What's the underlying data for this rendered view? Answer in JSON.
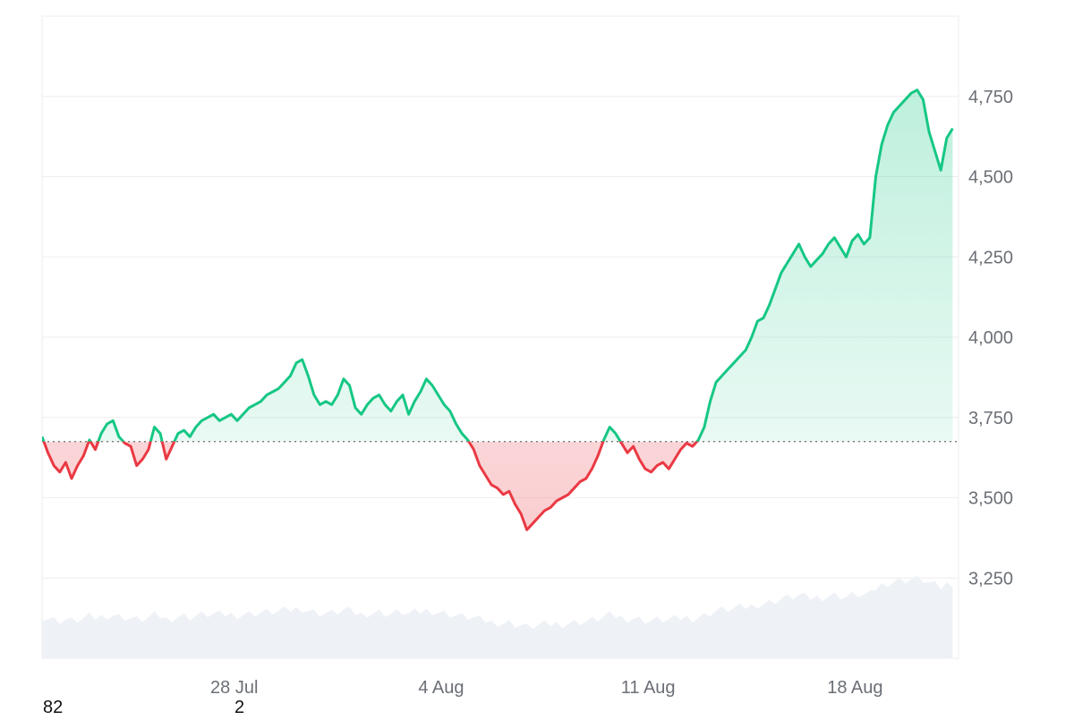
{
  "chart_data": {
    "type": "area",
    "title": "",
    "xlabel": "",
    "ylabel": "",
    "x_ticks": [
      "28 Jul",
      "4 Aug",
      "11 Aug",
      "18 Aug"
    ],
    "y_ticks": [
      "3,250",
      "3,500",
      "3,750",
      "4,000",
      "4,250",
      "4,500",
      "4,750"
    ],
    "y_tick_values": [
      3250,
      3500,
      3750,
      4000,
      4250,
      4500,
      4750
    ],
    "ylim": [
      3000,
      5000
    ],
    "baseline": 3675,
    "grid": true,
    "x_unit": "days",
    "xlim": [
      0,
      31
    ],
    "x_tick_positions": [
      6.5,
      13.5,
      20.5,
      27.5
    ],
    "series": [
      {
        "values": [
          [
            0.0,
            3690
          ],
          [
            0.2,
            3640
          ],
          [
            0.4,
            3600
          ],
          [
            0.6,
            3580
          ],
          [
            0.8,
            3610
          ],
          [
            1.0,
            3560
          ],
          [
            1.2,
            3600
          ],
          [
            1.4,
            3630
          ],
          [
            1.6,
            3680
          ],
          [
            1.8,
            3650
          ],
          [
            2.0,
            3700
          ],
          [
            2.2,
            3730
          ],
          [
            2.4,
            3740
          ],
          [
            2.6,
            3690
          ],
          [
            2.8,
            3670
          ],
          [
            3.0,
            3660
          ],
          [
            3.2,
            3600
          ],
          [
            3.4,
            3620
          ],
          [
            3.6,
            3650
          ],
          [
            3.8,
            3720
          ],
          [
            4.0,
            3700
          ],
          [
            4.2,
            3620
          ],
          [
            4.4,
            3660
          ],
          [
            4.6,
            3700
          ],
          [
            4.8,
            3710
          ],
          [
            5.0,
            3690
          ],
          [
            5.2,
            3720
          ],
          [
            5.4,
            3740
          ],
          [
            5.6,
            3750
          ],
          [
            5.8,
            3760
          ],
          [
            6.0,
            3740
          ],
          [
            6.2,
            3750
          ],
          [
            6.4,
            3760
          ],
          [
            6.6,
            3740
          ],
          [
            6.8,
            3760
          ],
          [
            7.0,
            3780
          ],
          [
            7.2,
            3790
          ],
          [
            7.4,
            3800
          ],
          [
            7.6,
            3820
          ],
          [
            7.8,
            3830
          ],
          [
            8.0,
            3840
          ],
          [
            8.2,
            3860
          ],
          [
            8.4,
            3880
          ],
          [
            8.6,
            3920
          ],
          [
            8.8,
            3930
          ],
          [
            9.0,
            3880
          ],
          [
            9.2,
            3820
          ],
          [
            9.4,
            3790
          ],
          [
            9.6,
            3800
          ],
          [
            9.8,
            3790
          ],
          [
            10.0,
            3820
          ],
          [
            10.2,
            3870
          ],
          [
            10.4,
            3850
          ],
          [
            10.6,
            3780
          ],
          [
            10.8,
            3760
          ],
          [
            11.0,
            3790
          ],
          [
            11.2,
            3810
          ],
          [
            11.4,
            3820
          ],
          [
            11.6,
            3790
          ],
          [
            11.8,
            3770
          ],
          [
            12.0,
            3800
          ],
          [
            12.2,
            3820
          ],
          [
            12.4,
            3760
          ],
          [
            12.6,
            3800
          ],
          [
            12.8,
            3830
          ],
          [
            13.0,
            3870
          ],
          [
            13.2,
            3850
          ],
          [
            13.4,
            3820
          ],
          [
            13.6,
            3790
          ],
          [
            13.8,
            3770
          ],
          [
            14.0,
            3730
          ],
          [
            14.2,
            3700
          ],
          [
            14.4,
            3680
          ],
          [
            14.6,
            3650
          ],
          [
            14.8,
            3600
          ],
          [
            15.0,
            3570
          ],
          [
            15.2,
            3540
          ],
          [
            15.4,
            3530
          ],
          [
            15.6,
            3510
          ],
          [
            15.8,
            3520
          ],
          [
            16.0,
            3480
          ],
          [
            16.2,
            3450
          ],
          [
            16.4,
            3400
          ],
          [
            16.6,
            3420
          ],
          [
            16.8,
            3440
          ],
          [
            17.0,
            3460
          ],
          [
            17.2,
            3470
          ],
          [
            17.4,
            3490
          ],
          [
            17.6,
            3500
          ],
          [
            17.8,
            3510
          ],
          [
            18.0,
            3530
          ],
          [
            18.2,
            3550
          ],
          [
            18.4,
            3560
          ],
          [
            18.6,
            3590
          ],
          [
            18.8,
            3630
          ],
          [
            19.0,
            3680
          ],
          [
            19.2,
            3720
          ],
          [
            19.4,
            3700
          ],
          [
            19.6,
            3670
          ],
          [
            19.8,
            3640
          ],
          [
            20.0,
            3660
          ],
          [
            20.2,
            3620
          ],
          [
            20.4,
            3590
          ],
          [
            20.6,
            3580
          ],
          [
            20.8,
            3600
          ],
          [
            21.0,
            3610
          ],
          [
            21.2,
            3590
          ],
          [
            21.4,
            3620
          ],
          [
            21.6,
            3650
          ],
          [
            21.8,
            3670
          ],
          [
            22.0,
            3660
          ],
          [
            22.2,
            3680
          ],
          [
            22.4,
            3720
          ],
          [
            22.6,
            3800
          ],
          [
            22.8,
            3860
          ],
          [
            23.0,
            3880
          ],
          [
            23.2,
            3900
          ],
          [
            23.4,
            3920
          ],
          [
            23.6,
            3940
          ],
          [
            23.8,
            3960
          ],
          [
            24.0,
            4000
          ],
          [
            24.2,
            4050
          ],
          [
            24.4,
            4060
          ],
          [
            24.6,
            4100
          ],
          [
            24.8,
            4150
          ],
          [
            25.0,
            4200
          ],
          [
            25.2,
            4230
          ],
          [
            25.4,
            4260
          ],
          [
            25.6,
            4290
          ],
          [
            25.8,
            4250
          ],
          [
            26.0,
            4220
          ],
          [
            26.2,
            4240
          ],
          [
            26.4,
            4260
          ],
          [
            26.6,
            4290
          ],
          [
            26.8,
            4310
          ],
          [
            27.0,
            4280
          ],
          [
            27.2,
            4250
          ],
          [
            27.4,
            4300
          ],
          [
            27.6,
            4320
          ],
          [
            27.8,
            4290
          ],
          [
            28.0,
            4310
          ],
          [
            28.2,
            4500
          ],
          [
            28.4,
            4600
          ],
          [
            28.6,
            4660
          ],
          [
            28.8,
            4700
          ],
          [
            29.0,
            4720
          ],
          [
            29.2,
            4740
          ],
          [
            29.4,
            4760
          ],
          [
            29.6,
            4770
          ],
          [
            29.8,
            4740
          ],
          [
            30.0,
            4640
          ],
          [
            30.2,
            4580
          ],
          [
            30.4,
            4520
          ],
          [
            30.6,
            4620
          ],
          [
            30.8,
            4650
          ]
        ]
      }
    ]
  },
  "stray_labels": [
    "82",
    "2"
  ],
  "colors": {
    "up": "#16c784",
    "down": "#ea3943",
    "up_fill": "#16c784",
    "down_fill": "#ea3943",
    "grid": "#eeeeee",
    "baseline": "#777777",
    "volume": "#eef1f6"
  }
}
